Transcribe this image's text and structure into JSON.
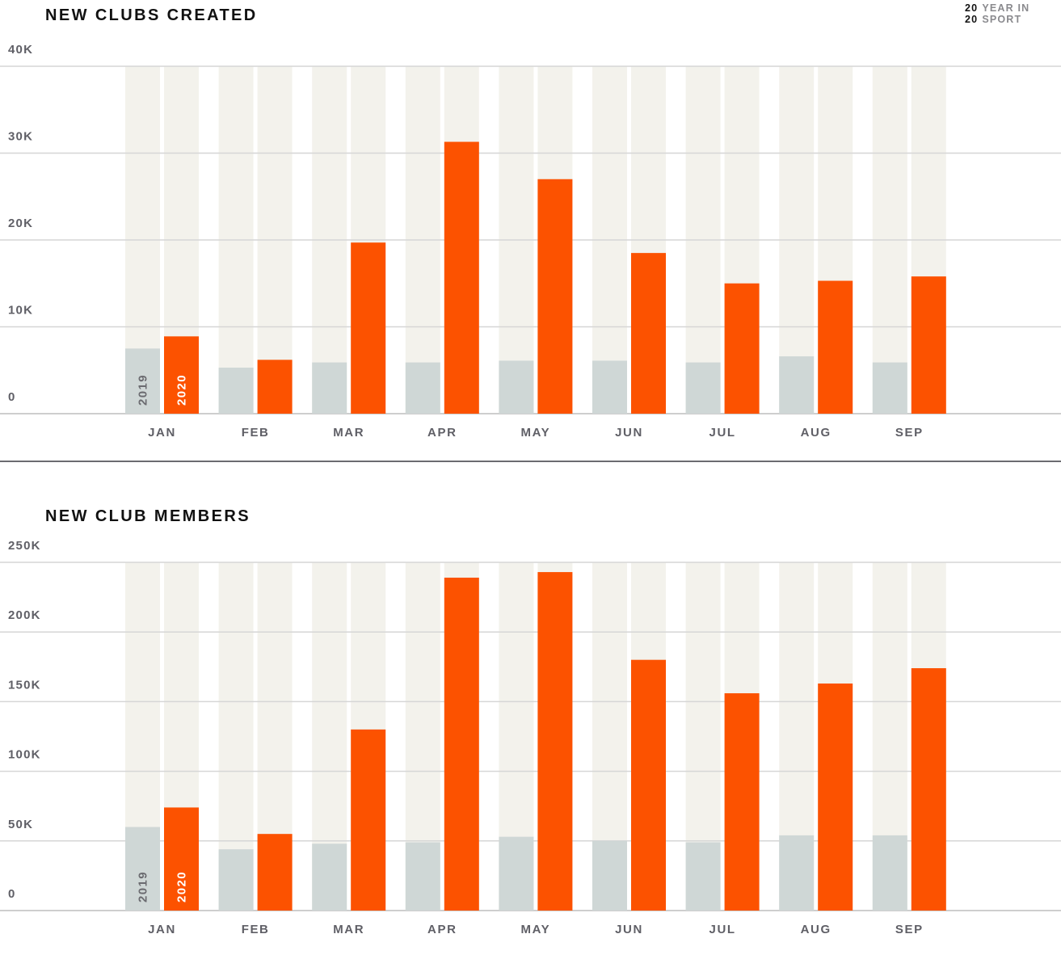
{
  "brand": {
    "line1_year": "20",
    "line1_text": "YEAR IN",
    "line2_year": "20",
    "line2_text": "SPORT"
  },
  "legend": {
    "series_a_label": "2019",
    "series_b_label": "2020"
  },
  "colors": {
    "series_2019": "#cfd7d6",
    "series_2020": "#fc5200",
    "background_band": "#f3f2ec",
    "grid": "#d6d6d6"
  },
  "chart_data": [
    {
      "type": "bar",
      "title": "NEW CLUBS CREATED",
      "categories": [
        "JAN",
        "FEB",
        "MAR",
        "APR",
        "MAY",
        "JUN",
        "JUL",
        "AUG",
        "SEP"
      ],
      "series": [
        {
          "name": "2019",
          "values": [
            7500,
            5300,
            5900,
            5900,
            6100,
            6100,
            5900,
            6600,
            5900
          ]
        },
        {
          "name": "2020",
          "values": [
            8900,
            6200,
            19700,
            31300,
            27000,
            18500,
            15000,
            15300,
            15800
          ]
        }
      ],
      "yticks": [
        0,
        10000,
        20000,
        30000,
        40000
      ],
      "ytick_labels": [
        "0",
        "10K",
        "20K",
        "30K",
        "40K"
      ],
      "ylim": [
        0,
        40000
      ],
      "xlabel": "",
      "ylabel": "",
      "grid": true
    },
    {
      "type": "bar",
      "title": "NEW CLUB MEMBERS",
      "categories": [
        "JAN",
        "FEB",
        "MAR",
        "APR",
        "MAY",
        "JUN",
        "JUL",
        "AUG",
        "SEP"
      ],
      "series": [
        {
          "name": "2019",
          "values": [
            60000,
            44000,
            48000,
            49000,
            53000,
            50000,
            49000,
            54000,
            54000
          ]
        },
        {
          "name": "2020",
          "values": [
            74000,
            55000,
            130000,
            239000,
            243000,
            180000,
            156000,
            163000,
            174000
          ]
        }
      ],
      "yticks": [
        0,
        50000,
        100000,
        150000,
        200000,
        250000
      ],
      "ytick_labels": [
        "0",
        "50K",
        "100K",
        "150K",
        "200K",
        "250K"
      ],
      "ylim": [
        0,
        250000
      ],
      "xlabel": "",
      "ylabel": "",
      "grid": true
    }
  ]
}
